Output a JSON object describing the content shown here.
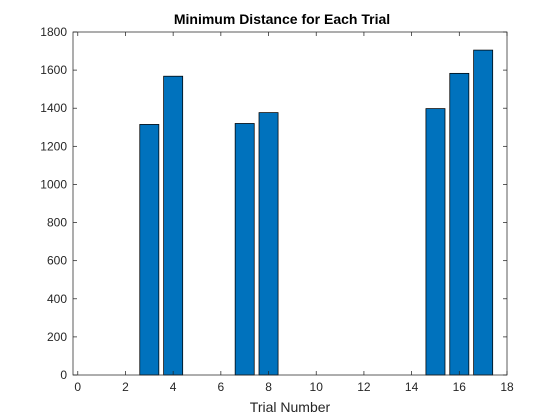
{
  "chart_data": {
    "type": "bar",
    "title": "Minimum Distance for Each Trial",
    "xlabel": "Trial Number",
    "ylabel": "",
    "x": [
      3,
      4,
      7,
      8,
      15,
      16,
      17
    ],
    "values": [
      1315,
      1568,
      1320,
      1377,
      1398,
      1583,
      1705
    ],
    "xlim": [
      -0.2,
      18
    ],
    "ylim": [
      0,
      1800
    ],
    "xticks": [
      0,
      2,
      4,
      6,
      8,
      10,
      12,
      14,
      16,
      18
    ],
    "yticks": [
      0,
      200,
      400,
      600,
      800,
      1000,
      1200,
      1400,
      1600,
      1800
    ],
    "bar_width": 0.8,
    "grid": false,
    "legend": "none",
    "colors": {
      "bar_fill": "#0072bd",
      "bar_edge": "#000000",
      "axis": "#262626"
    }
  }
}
